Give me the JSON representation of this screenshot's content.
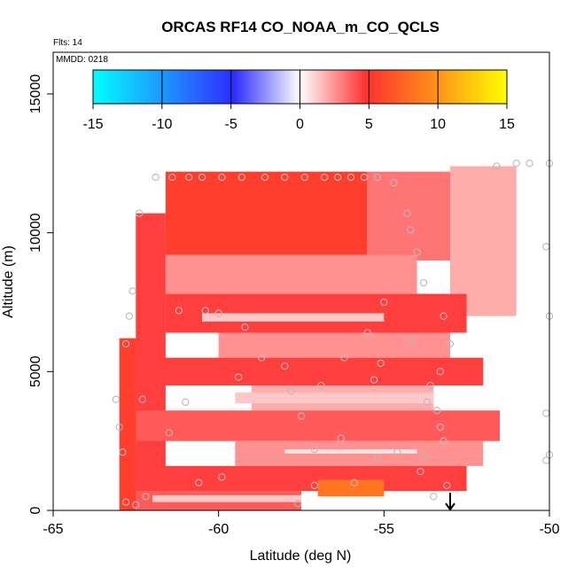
{
  "chart_data": {
    "type": "heatmap",
    "title": "ORCAS RF14 CO_NOAA_m_CO_QCLS",
    "notes": {
      "flights": "Flts: 14",
      "date": "MMDD: 0218"
    },
    "xlabel": "Latitude (deg N)",
    "ylabel": "Altitude (m)",
    "xlim": [
      -65,
      -50
    ],
    "ylim": [
      0,
      16500
    ],
    "x_ticks": [
      -65,
      -60,
      -55,
      -50
    ],
    "x_tick_labels": [
      "-65",
      "-60",
      "-55",
      "-50"
    ],
    "y_ticks": [
      0,
      5000,
      10000,
      15000
    ],
    "y_tick_labels": [
      "0",
      "5000",
      "10000",
      "15000"
    ],
    "colorbar": {
      "min": -15,
      "max": 15,
      "ticks": [
        -15,
        -10,
        -5,
        0,
        5,
        10,
        15
      ],
      "tick_labels": [
        "-15",
        "-10",
        "-5",
        "0",
        "5",
        "10",
        "15"
      ],
      "colors": [
        "#00ffff",
        "#2c2cff",
        "#ffffff",
        "#ff3030",
        "#ffff00"
      ]
    },
    "grid": false,
    "field_bands": [
      {
        "lat": [
          -63.0,
          -62.5
        ],
        "alt": [
          0,
          6200
        ],
        "value": 8
      },
      {
        "lat": [
          -62.5,
          -61.6
        ],
        "alt": [
          0,
          10700
        ],
        "value": 7
      },
      {
        "lat": [
          -61.6,
          -55.5
        ],
        "alt": [
          9200,
          12200
        ],
        "value": 8
      },
      {
        "lat": [
          -55.5,
          -53.0
        ],
        "alt": [
          9000,
          12200
        ],
        "value": 5
      },
      {
        "lat": [
          -53.0,
          -51.0
        ],
        "alt": [
          7000,
          12400
        ],
        "value": 3
      },
      {
        "lat": [
          -61.6,
          -54.0
        ],
        "alt": [
          7800,
          9200
        ],
        "value": 4
      },
      {
        "lat": [
          -61.6,
          -52.5
        ],
        "alt": [
          6400,
          7800
        ],
        "value": 7
      },
      {
        "lat": [
          -60.0,
          -53.0
        ],
        "alt": [
          5500,
          6400
        ],
        "value": 4
      },
      {
        "lat": [
          -62.5,
          -52.0
        ],
        "alt": [
          4500,
          5500
        ],
        "value": 7
      },
      {
        "lat": [
          -59.0,
          -53.5
        ],
        "alt": [
          3600,
          4500
        ],
        "value": 3
      },
      {
        "lat": [
          -62.5,
          -51.5
        ],
        "alt": [
          2500,
          3600
        ],
        "value": 6
      },
      {
        "lat": [
          -59.5,
          -52.0
        ],
        "alt": [
          1600,
          2500
        ],
        "value": 4
      },
      {
        "lat": [
          -62.5,
          -52.5
        ],
        "alt": [
          700,
          1600
        ],
        "value": 7
      },
      {
        "lat": [
          -62.5,
          -57.5
        ],
        "alt": [
          0,
          700
        ],
        "value": 6
      },
      {
        "lat": [
          -62.0,
          -57.5
        ],
        "alt": [
          300,
          550
        ],
        "value": 2
      },
      {
        "lat": [
          -58.0,
          -54.0
        ],
        "alt": [
          2050,
          2200
        ],
        "value": 1
      },
      {
        "lat": [
          -59.5,
          -53.5
        ],
        "alt": [
          3850,
          4250
        ],
        "value": 2
      },
      {
        "lat": [
          -60.5,
          -55.0
        ],
        "alt": [
          6800,
          7100
        ],
        "value": 2
      },
      {
        "lat": [
          -57.0,
          -55.0
        ],
        "alt": [
          500,
          1100
        ],
        "value": 10
      }
    ],
    "observations": [
      {
        "lat": -62.8,
        "alt": 300
      },
      {
        "lat": -62.5,
        "alt": 200
      },
      {
        "lat": -62.2,
        "alt": 500
      },
      {
        "lat": -62.9,
        "alt": 2100
      },
      {
        "lat": -63.0,
        "alt": 3000
      },
      {
        "lat": -63.1,
        "alt": 4000
      },
      {
        "lat": -62.3,
        "alt": 4000
      },
      {
        "lat": -62.8,
        "alt": 6000
      },
      {
        "lat": -62.7,
        "alt": 7000
      },
      {
        "lat": -62.6,
        "alt": 7900
      },
      {
        "lat": -62.4,
        "alt": 10700
      },
      {
        "lat": -61.9,
        "alt": 12000
      },
      {
        "lat": -61.4,
        "alt": 12000
      },
      {
        "lat": -60.9,
        "alt": 12000
      },
      {
        "lat": -60.5,
        "alt": 12000
      },
      {
        "lat": -59.9,
        "alt": 12000
      },
      {
        "lat": -59.3,
        "alt": 12000
      },
      {
        "lat": -58.6,
        "alt": 12000
      },
      {
        "lat": -58.0,
        "alt": 12000
      },
      {
        "lat": -57.4,
        "alt": 12000
      },
      {
        "lat": -56.8,
        "alt": 12000
      },
      {
        "lat": -56.4,
        "alt": 12000
      },
      {
        "lat": -56.0,
        "alt": 12000
      },
      {
        "lat": -55.6,
        "alt": 12000
      },
      {
        "lat": -55.2,
        "alt": 12000
      },
      {
        "lat": -54.7,
        "alt": 11800
      },
      {
        "lat": -54.3,
        "alt": 10700
      },
      {
        "lat": -54.0,
        "alt": 9300
      },
      {
        "lat": -53.8,
        "alt": 8200
      },
      {
        "lat": -53.2,
        "alt": 7000
      },
      {
        "lat": -53.0,
        "alt": 6000
      },
      {
        "lat": -53.3,
        "alt": 5000
      },
      {
        "lat": -53.6,
        "alt": 4500
      },
      {
        "lat": -53.7,
        "alt": 3900
      },
      {
        "lat": -53.4,
        "alt": 3600
      },
      {
        "lat": -53.3,
        "alt": 3000
      },
      {
        "lat": -53.2,
        "alt": 2500
      },
      {
        "lat": -53.8,
        "alt": 2000
      },
      {
        "lat": -53.9,
        "alt": 1400
      },
      {
        "lat": -53.1,
        "alt": 900
      },
      {
        "lat": -53.5,
        "alt": 500
      },
      {
        "lat": -51.6,
        "alt": 12400
      },
      {
        "lat": -51.0,
        "alt": 12500
      },
      {
        "lat": -50.6,
        "alt": 12500
      },
      {
        "lat": -50.0,
        "alt": 12500
      },
      {
        "lat": -50.1,
        "alt": 9500
      },
      {
        "lat": -50.0,
        "alt": 7000
      },
      {
        "lat": -50.1,
        "alt": 3500
      },
      {
        "lat": -50.0,
        "alt": 2000
      },
      {
        "lat": -50.1,
        "alt": 1800
      },
      {
        "lat": -61.2,
        "alt": 7200
      },
      {
        "lat": -60.4,
        "alt": 7200
      },
      {
        "lat": -60.0,
        "alt": 7100
      },
      {
        "lat": -59.2,
        "alt": 6600
      },
      {
        "lat": -58.7,
        "alt": 5500
      },
      {
        "lat": -59.4,
        "alt": 4800
      },
      {
        "lat": -58.0,
        "alt": 5200
      },
      {
        "lat": -57.8,
        "alt": 4300
      },
      {
        "lat": -57.5,
        "alt": 3400
      },
      {
        "lat": -56.9,
        "alt": 4500
      },
      {
        "lat": -56.2,
        "alt": 5500
      },
      {
        "lat": -55.5,
        "alt": 6400
      },
      {
        "lat": -55.1,
        "alt": 5300
      },
      {
        "lat": -54.2,
        "alt": 6100
      },
      {
        "lat": -55.3,
        "alt": 4700
      },
      {
        "lat": -56.3,
        "alt": 2600
      },
      {
        "lat": -55.2,
        "alt": 1900
      },
      {
        "lat": -54.6,
        "alt": 2100
      },
      {
        "lat": -55.9,
        "alt": 1000
      },
      {
        "lat": -57.1,
        "alt": 900
      },
      {
        "lat": -57.6,
        "alt": 250
      },
      {
        "lat": -59.9,
        "alt": 1200
      },
      {
        "lat": -60.6,
        "alt": 1000
      },
      {
        "lat": -61.5,
        "alt": 2800
      },
      {
        "lat": -61.0,
        "alt": 3900
      },
      {
        "lat": -57.1,
        "alt": 2200
      },
      {
        "lat": -55.0,
        "alt": 7500
      },
      {
        "lat": -54.2,
        "alt": 10100
      }
    ],
    "flight_marker": {
      "lat": -53.0,
      "alt": 0,
      "label": "arrow-down"
    }
  }
}
